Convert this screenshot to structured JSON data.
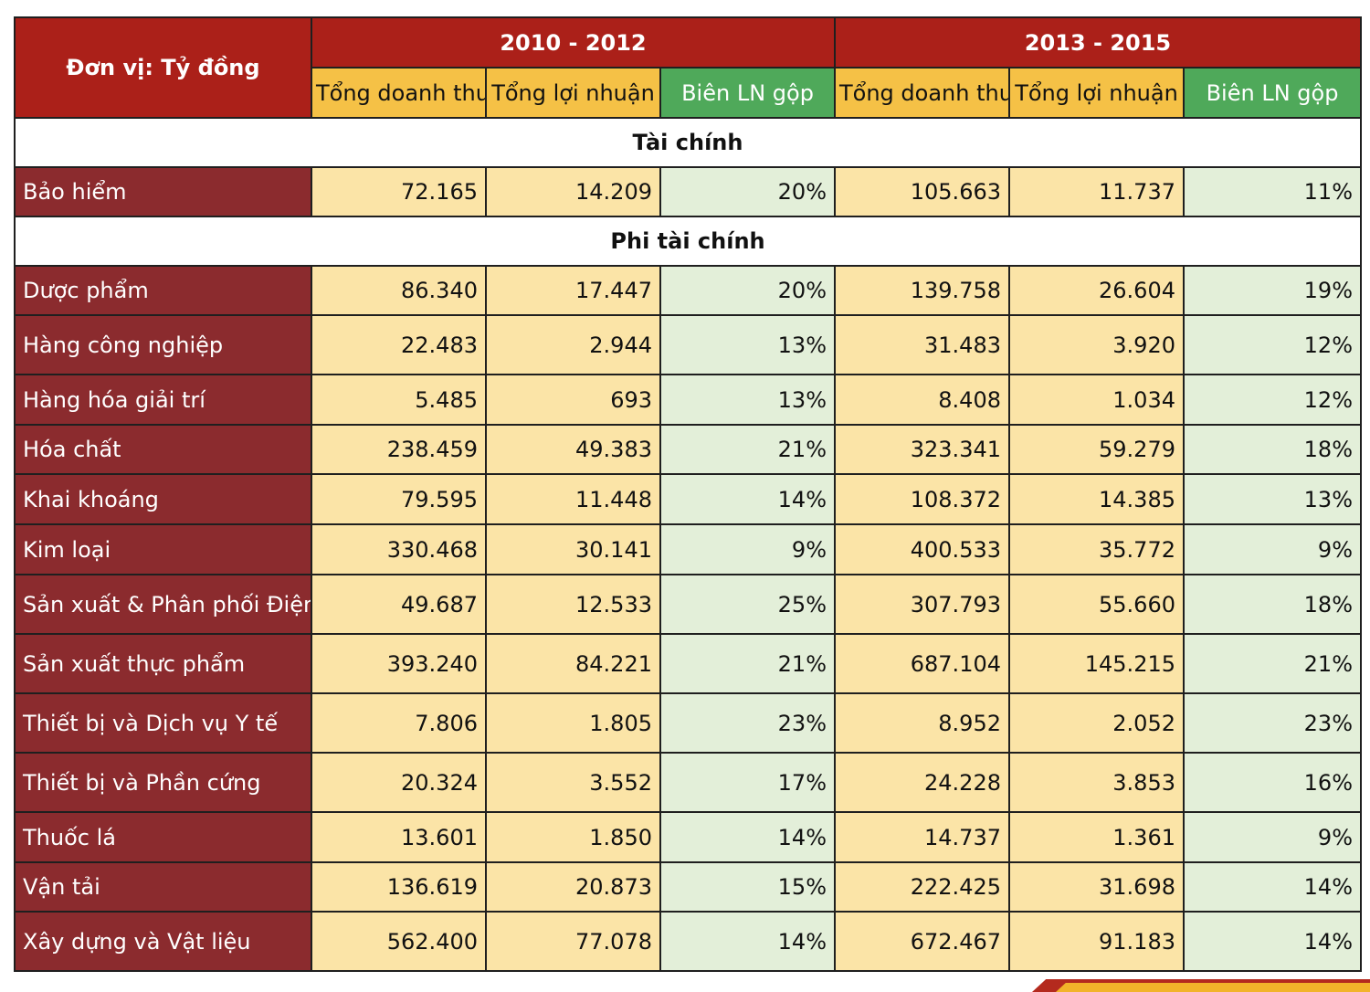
{
  "header": {
    "unit_label": "Đơn vị: Tỷ đồng",
    "periods": [
      "2010 - 2012",
      "2013 - 2015"
    ],
    "columns": [
      "Tổng doanh thu",
      "Tổng lợi nhuận",
      "Biên LN gộp"
    ]
  },
  "sections": [
    {
      "title": "Tài chính",
      "rows": [
        {
          "label": "Bảo hiểm",
          "values": [
            "72.165",
            "14.209",
            "20%",
            "105.663",
            "11.737",
            "11%"
          ]
        }
      ]
    },
    {
      "title": "Phi tài chính",
      "rows": [
        {
          "label": "Dược phẩm",
          "values": [
            "86.340",
            "17.447",
            "20%",
            "139.758",
            "26.604",
            "19%"
          ]
        },
        {
          "label": "Hàng công nghiệp",
          "values": [
            "22.483",
            "2.944",
            "13%",
            "31.483",
            "3.920",
            "12%"
          ]
        },
        {
          "label": "Hàng hóa giải trí",
          "values": [
            "5.485",
            "693",
            "13%",
            "8.408",
            "1.034",
            "12%"
          ]
        },
        {
          "label": "Hóa chất",
          "values": [
            "238.459",
            "49.383",
            "21%",
            "323.341",
            "59.279",
            "18%"
          ]
        },
        {
          "label": "Khai khoáng",
          "values": [
            "79.595",
            "11.448",
            "14%",
            "108.372",
            "14.385",
            "13%"
          ]
        },
        {
          "label": "Kim loại",
          "values": [
            "330.468",
            "30.141",
            "9%",
            "400.533",
            "35.772",
            "9%"
          ]
        },
        {
          "label": "Sản xuất & Phân phối Điện",
          "values": [
            "49.687",
            "12.533",
            "25%",
            "307.793",
            "55.660",
            "18%"
          ]
        },
        {
          "label": "Sản xuất thực phẩm",
          "values": [
            "393.240",
            "84.221",
            "21%",
            "687.104",
            "145.215",
            "21%"
          ]
        },
        {
          "label": "Thiết bị và Dịch vụ Y tế",
          "values": [
            "7.806",
            "1.805",
            "23%",
            "8.952",
            "2.052",
            "23%"
          ]
        },
        {
          "label": "Thiết bị và Phần cứng",
          "values": [
            "20.324",
            "3.552",
            "17%",
            "24.228",
            "3.853",
            "16%"
          ]
        },
        {
          "label": "Thuốc lá",
          "values": [
            "13.601",
            "1.850",
            "14%",
            "14.737",
            "1.361",
            "9%"
          ]
        },
        {
          "label": "Vận tải",
          "values": [
            "136.619",
            "20.873",
            "15%",
            "222.425",
            "31.698",
            "14%"
          ]
        },
        {
          "label": "Xây dựng và Vật liệu",
          "values": [
            "562.400",
            "77.078",
            "14%",
            "672.467",
            "91.183",
            "14%"
          ]
        }
      ]
    }
  ]
}
